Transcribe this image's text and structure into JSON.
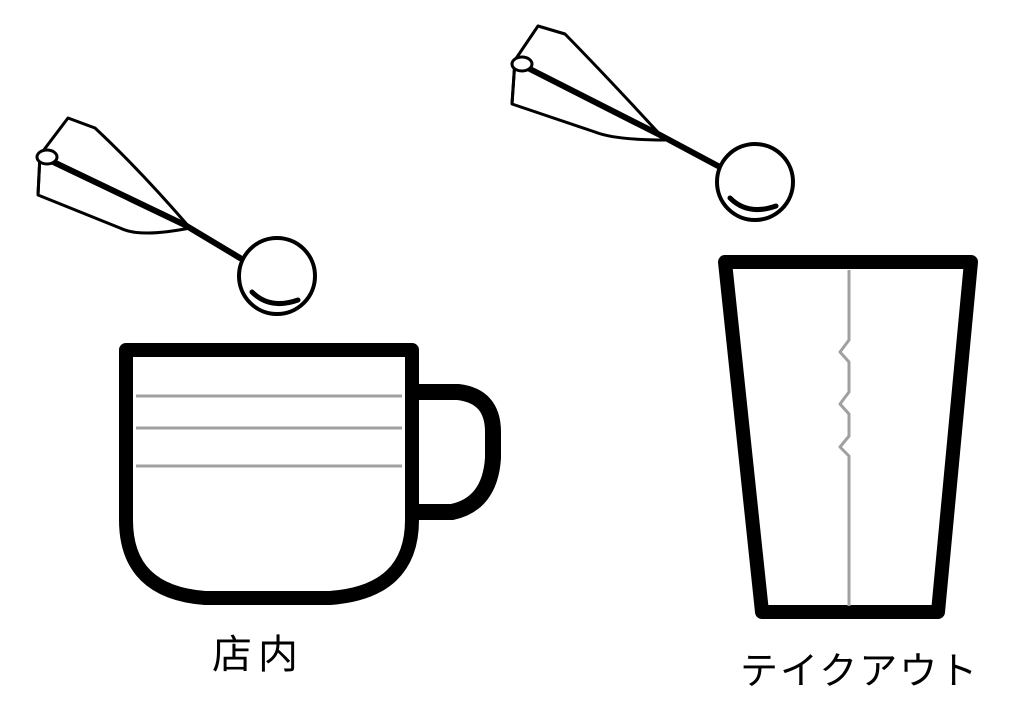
{
  "labels": {
    "in_store": "店内",
    "takeout": "テイクアウト"
  },
  "icons": [
    "spoon-icon",
    "coffee-cup-icon",
    "spoon-icon",
    "takeout-cup-icon"
  ],
  "colors": {
    "line": "#000000",
    "accent_line": "#a0a0a0",
    "background": "#ffffff"
  }
}
